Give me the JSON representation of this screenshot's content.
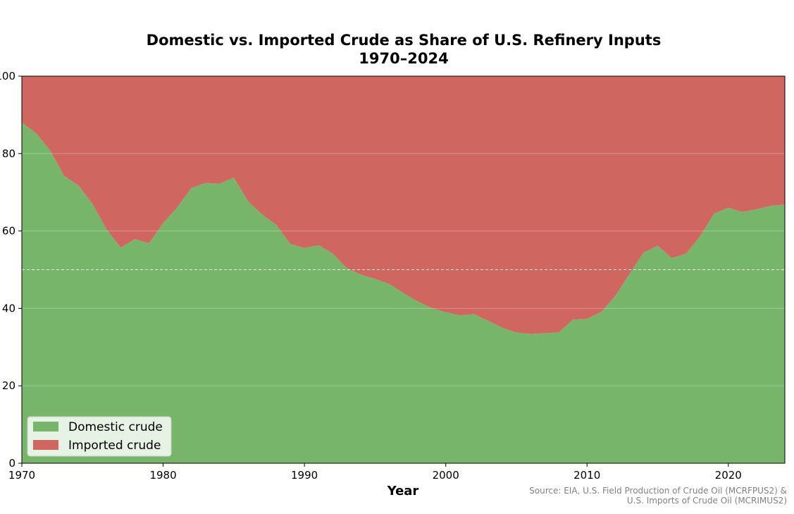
{
  "chart_data": {
    "type": "area",
    "title": "Domestic vs. Imported Crude as Share of U.S. Refinery Inputs",
    "subtitle": "1970–2024",
    "xlabel": "Year",
    "ylabel": "",
    "xlim": [
      1970,
      2024
    ],
    "ylim": [
      0,
      100
    ],
    "x_ticks": [
      1970,
      1980,
      1990,
      2000,
      2010,
      2020
    ],
    "y_ticks": [
      0,
      20,
      40,
      60,
      80,
      100
    ],
    "stacked": true,
    "grid": true,
    "reference_line": {
      "y": 50,
      "style": "dashed",
      "color": "#ffffff"
    },
    "legend_position": "lower-left",
    "source": [
      "Source: EIA, U.S. Field Production of Crude Oil (MCRFPUS2) &",
      "U.S. Imports of Crude Oil (MCRIMUS2)"
    ],
    "x": [
      1970,
      1971,
      1972,
      1973,
      1974,
      1975,
      1976,
      1977,
      1978,
      1979,
      1980,
      1981,
      1982,
      1983,
      1984,
      1985,
      1986,
      1987,
      1988,
      1989,
      1990,
      1991,
      1992,
      1993,
      1994,
      1995,
      1996,
      1997,
      1998,
      1999,
      2000,
      2001,
      2002,
      2003,
      2004,
      2005,
      2006,
      2007,
      2008,
      2009,
      2010,
      2011,
      2012,
      2013,
      2014,
      2015,
      2016,
      2017,
      2018,
      2019,
      2020,
      2021,
      2022,
      2023,
      2024
    ],
    "series": [
      {
        "name": "Domestic crude",
        "color": "#77b66a",
        "values": [
          88,
          85.3,
          80.8,
          74.2,
          71.8,
          67,
          60.4,
          55.7,
          57.9,
          56.8,
          62,
          66.1,
          71.1,
          72.4,
          72.2,
          73.8,
          67.7,
          64.3,
          61.6,
          56.6,
          55.6,
          56.3,
          54.2,
          50.4,
          48.7,
          47.6,
          46.3,
          44,
          41.8,
          40.1,
          39,
          38.2,
          38.5,
          36.8,
          35,
          33.8,
          33.4,
          33.6,
          33.8,
          37.1,
          37.3,
          39,
          43.2,
          48.9,
          54.4,
          56.2,
          53,
          54.1,
          58.6,
          64.5,
          66,
          64.9,
          65.6,
          66.5,
          66.8
        ]
      },
      {
        "name": "Imported crude",
        "color": "#d06660",
        "values": [
          12,
          14.7,
          19.2,
          25.8,
          28.2,
          33,
          39.6,
          44.3,
          42.1,
          43.2,
          38,
          33.9,
          28.9,
          27.6,
          27.8,
          26.2,
          32.3,
          35.7,
          38.4,
          43.4,
          44.4,
          43.7,
          45.8,
          49.6,
          51.3,
          52.4,
          53.7,
          56,
          58.2,
          59.9,
          61,
          61.8,
          61.5,
          63.2,
          65,
          66.2,
          66.6,
          66.4,
          66.2,
          62.9,
          62.7,
          61,
          56.8,
          51.1,
          45.6,
          43.8,
          47,
          45.9,
          41.4,
          35.5,
          34,
          35.1,
          34.4,
          33.5,
          33.2
        ]
      }
    ]
  }
}
